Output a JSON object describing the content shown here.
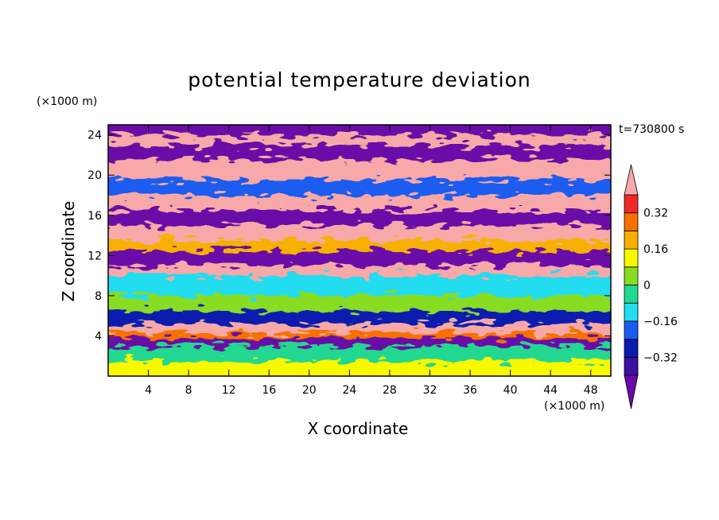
{
  "chart_data": {
    "type": "heatmap",
    "title": "potential temperature deviation",
    "xlabel": "X coordinate",
    "ylabel": "Z coordinate",
    "x_unit_label": "(×1000 m)",
    "y_unit_label": "(×1000 m)",
    "time_label": "t=730800 s",
    "xlim": [
      0,
      50
    ],
    "ylim": [
      0,
      25
    ],
    "x_ticks": [
      4,
      8,
      12,
      16,
      20,
      24,
      28,
      32,
      36,
      40,
      44,
      48
    ],
    "y_ticks": [
      4,
      8,
      12,
      16,
      20,
      24
    ],
    "colorbar": {
      "levels": [
        -0.4,
        -0.32,
        -0.24,
        -0.16,
        -0.08,
        0,
        0.08,
        0.16,
        0.24,
        0.32,
        0.4
      ],
      "labels": [
        "0.32",
        "0.16",
        "0",
        "−0.16",
        "−0.32"
      ],
      "label_values": [
        0.32,
        0.16,
        0,
        -0.16,
        -0.32
      ],
      "colors": [
        "#6a0aa8",
        "#3a129e",
        "#0a1ab0",
        "#1a5cf0",
        "#22dcf0",
        "#22d890",
        "#88dc22",
        "#f8f800",
        "#f8b000",
        "#f87000",
        "#f02828",
        "#f8a8a8"
      ],
      "extend": "both"
    },
    "bands": [
      {
        "z": [
          0.0,
          1.5
        ],
        "value": 0.1
      },
      {
        "z": [
          1.5,
          3.0
        ],
        "value": -0.05
      },
      {
        "z": [
          3.0,
          3.8
        ],
        "value": -0.42
      },
      {
        "z": [
          3.8,
          4.3
        ],
        "value": 0.3
      },
      {
        "z": [
          4.3,
          5.2
        ],
        "value": 0.42
      },
      {
        "z": [
          5.2,
          6.5
        ],
        "value": -0.3
      },
      {
        "z": [
          6.5,
          8.0
        ],
        "value": 0.05
      },
      {
        "z": [
          8.0,
          10.0
        ],
        "value": -0.1
      },
      {
        "z": [
          10.0,
          11.0
        ],
        "value": 0.42
      },
      {
        "z": [
          11.0,
          12.5
        ],
        "value": -0.42
      },
      {
        "z": [
          12.5,
          13.5
        ],
        "value": 0.2
      },
      {
        "z": [
          13.5,
          15.0
        ],
        "value": 0.42
      },
      {
        "z": [
          15.0,
          16.5
        ],
        "value": -0.42
      },
      {
        "z": [
          16.5,
          18.0
        ],
        "value": 0.42
      },
      {
        "z": [
          18.0,
          19.5
        ],
        "value": -0.2
      },
      {
        "z": [
          19.5,
          21.5
        ],
        "value": 0.42
      },
      {
        "z": [
          21.5,
          23.0
        ],
        "value": -0.42
      },
      {
        "z": [
          23.0,
          24.0
        ],
        "value": 0.42
      },
      {
        "z": [
          24.0,
          25.0
        ],
        "value": -0.42
      }
    ]
  }
}
